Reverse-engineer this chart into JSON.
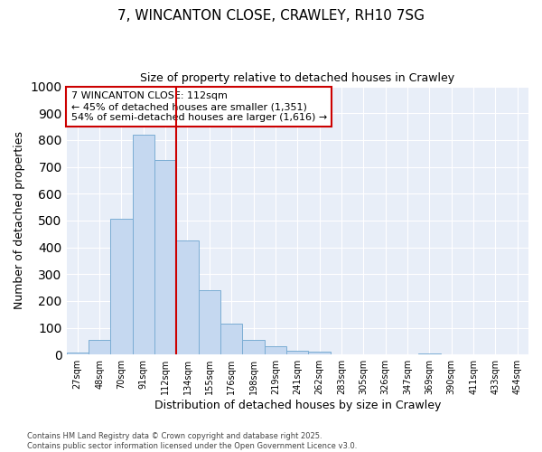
{
  "title1": "7, WINCANTON CLOSE, CRAWLEY, RH10 7SG",
  "title2": "Size of property relative to detached houses in Crawley",
  "xlabel": "Distribution of detached houses by size in Crawley",
  "ylabel": "Number of detached properties",
  "categories": [
    "27sqm",
    "48sqm",
    "70sqm",
    "91sqm",
    "112sqm",
    "134sqm",
    "155sqm",
    "176sqm",
    "198sqm",
    "219sqm",
    "241sqm",
    "262sqm",
    "283sqm",
    "305sqm",
    "326sqm",
    "347sqm",
    "369sqm",
    "390sqm",
    "411sqm",
    "433sqm",
    "454sqm"
  ],
  "values": [
    8,
    55,
    505,
    820,
    725,
    425,
    240,
    115,
    55,
    32,
    14,
    12,
    0,
    0,
    0,
    0,
    5,
    0,
    0,
    0,
    0
  ],
  "bar_color": "#c5d8f0",
  "bar_edge_color": "#7badd4",
  "vline_color": "#cc0000",
  "annotation_text": "7 WINCANTON CLOSE: 112sqm\n← 45% of detached houses are smaller (1,351)\n54% of semi-detached houses are larger (1,616) →",
  "annotation_box_facecolor": "#ffffff",
  "annotation_box_edgecolor": "#cc0000",
  "ylim": [
    0,
    1000
  ],
  "yticks": [
    0,
    100,
    200,
    300,
    400,
    500,
    600,
    700,
    800,
    900,
    1000
  ],
  "footer1": "Contains HM Land Registry data © Crown copyright and database right 2025.",
  "footer2": "Contains public sector information licensed under the Open Government Licence v3.0.",
  "bg_color": "#ffffff",
  "plot_bg_color": "#e8eef8",
  "grid_color": "#ffffff",
  "title1_fontsize": 11,
  "title2_fontsize": 9
}
